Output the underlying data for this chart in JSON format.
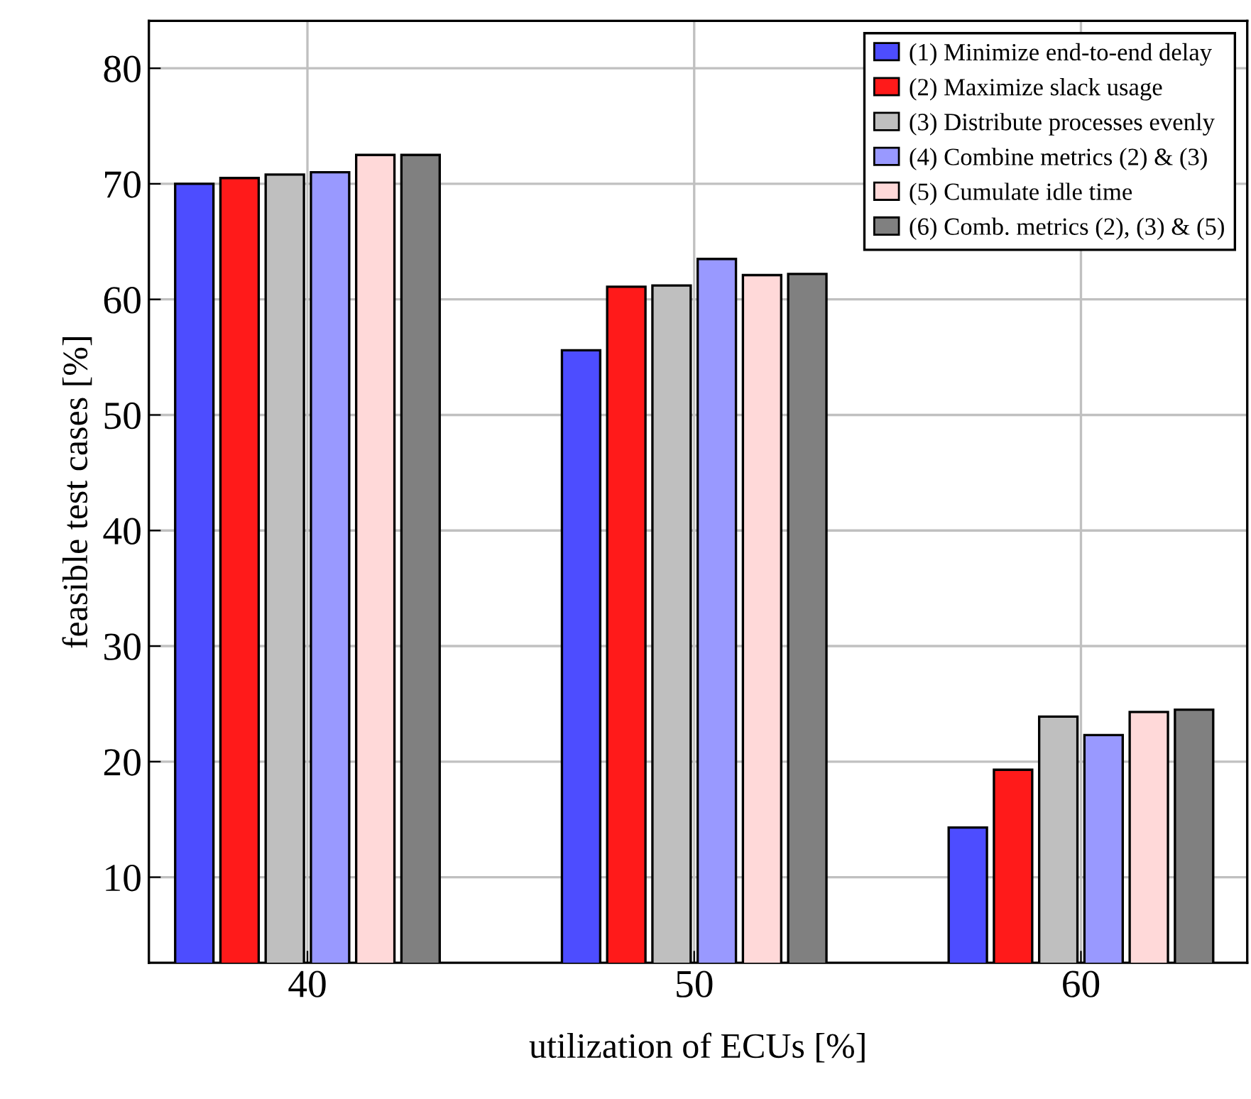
{
  "chart_data": {
    "type": "bar",
    "xlabel": "utilization of ECUs [%]",
    "ylabel": "feasible test cases [%]",
    "categories": [
      "40",
      "50",
      "60"
    ],
    "series": [
      {
        "name": "(1) Minimize end-to-end delay",
        "color": "#4d4dff",
        "values": [
          70.0,
          55.6,
          14.3
        ]
      },
      {
        "name": "(2) Maximize slack usage",
        "color": "#ff1a1a",
        "values": [
          70.5,
          61.1,
          19.3
        ]
      },
      {
        "name": "(3) Distribute processes evenly",
        "color": "#bfbfbf",
        "values": [
          70.8,
          61.2,
          23.9
        ]
      },
      {
        "name": "(4) Combine metrics (2) & (3)",
        "color": "#9999ff",
        "values": [
          71.0,
          63.5,
          22.3
        ]
      },
      {
        "name": "(5) Cumulate idle time",
        "color": "#ffd9d9",
        "values": [
          72.5,
          62.1,
          24.3
        ]
      },
      {
        "name": "(6) Comb. metrics (2), (3) & (5)",
        "color": "#808080",
        "values": [
          72.5,
          62.2,
          24.5
        ]
      }
    ],
    "ylim": [
      2.6,
      84.1
    ],
    "yticks": [
      10,
      20,
      30,
      40,
      50,
      60,
      70,
      80
    ],
    "grid": true,
    "legend": "top right"
  }
}
